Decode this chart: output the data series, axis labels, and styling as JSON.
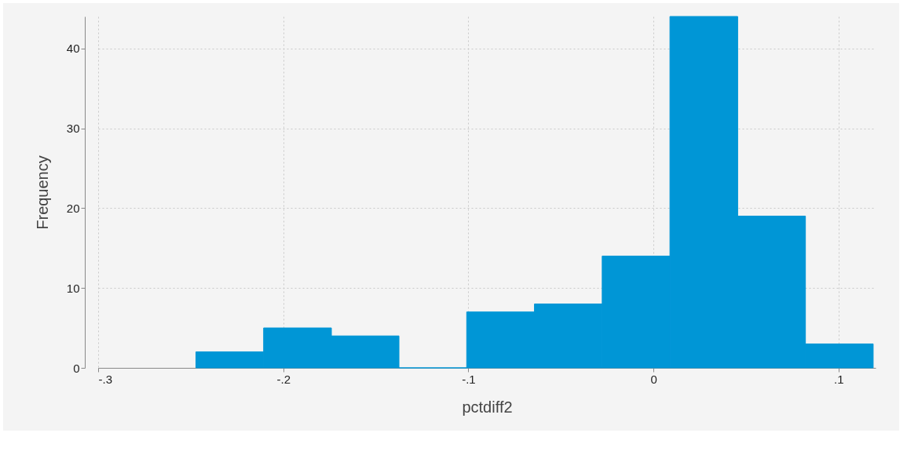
{
  "chart_data": {
    "type": "histogram",
    "xlabel": "pctdiff2",
    "ylabel": "Frequency",
    "bins": [
      -0.2472,
      -0.2106,
      -0.174,
      -0.1375,
      -0.1009,
      -0.0643,
      -0.0277,
      0.0089,
      0.0455,
      0.0821,
      0.1187
    ],
    "values": [
      2,
      5,
      4,
      0,
      7,
      8,
      14,
      44,
      19,
      3
    ],
    "color": "#0096d6",
    "xlim": [
      -0.3,
      0.12
    ],
    "xticks": [
      {
        "value": -0.3,
        "label": "-.3"
      },
      {
        "value": -0.2,
        "label": "-.2"
      },
      {
        "value": -0.1,
        "label": "-.1"
      },
      0,
      {
        "value": 0.1,
        "label": ".1"
      }
    ],
    "ylim": [
      0,
      44
    ],
    "yticks": [
      0,
      10,
      20,
      30,
      40
    ],
    "grid": true
  }
}
